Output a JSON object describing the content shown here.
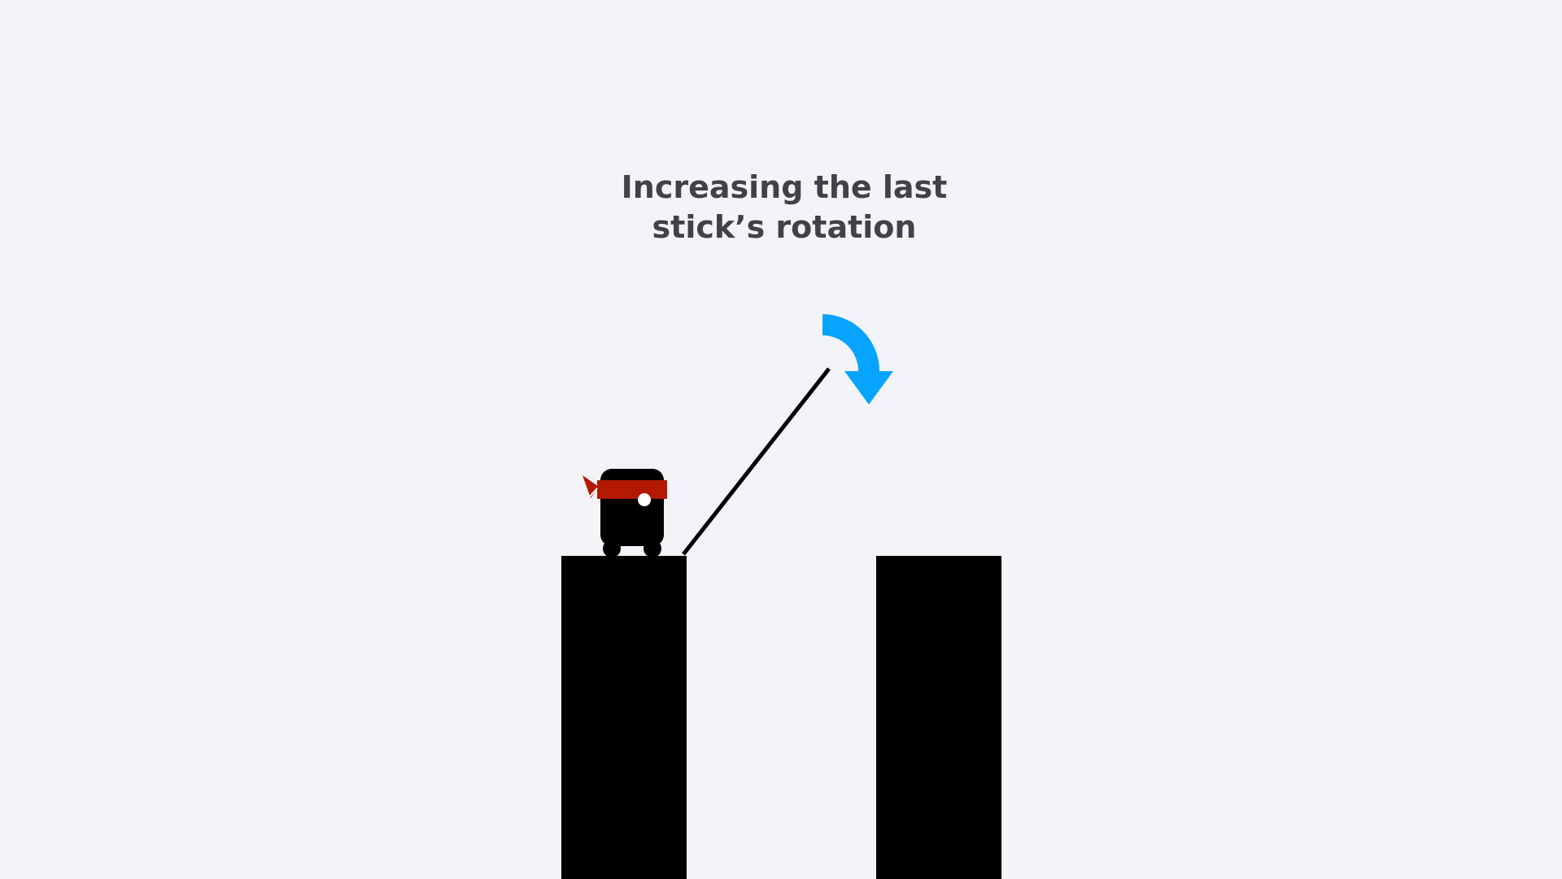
{
  "caption": {
    "line1": "Increasing the last",
    "line2": "stick’s rotation"
  },
  "scene": {
    "platforms": [
      {
        "name": "current-platform"
      },
      {
        "name": "target-platform"
      }
    ],
    "stick": {
      "angle_deg_from_vertical": 38
    },
    "rotation_arrow": {
      "icon": "clockwise-arrow-icon",
      "direction": "clockwise",
      "color": "#07a4ff"
    },
    "hero": {
      "icon": "ninja-hero",
      "headband_color": "#b31800",
      "body_color": "#000000"
    }
  }
}
